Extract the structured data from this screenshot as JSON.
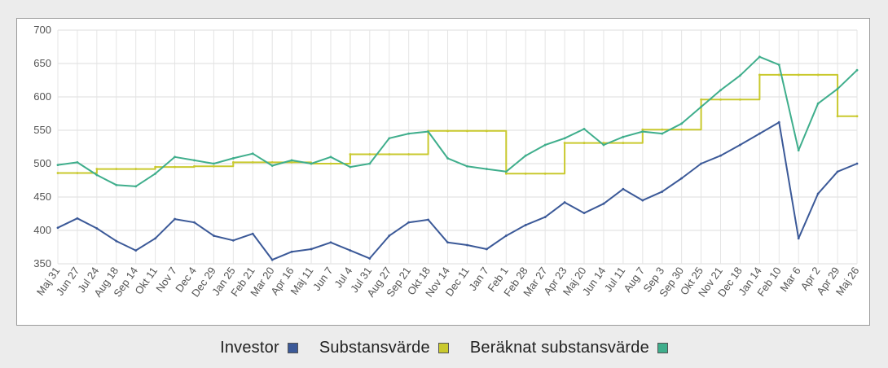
{
  "chart_data": {
    "type": "line",
    "title": "",
    "xlabel": "",
    "ylabel": "",
    "ylim": [
      350,
      700
    ],
    "yticks": [
      350,
      400,
      450,
      500,
      550,
      600,
      650,
      700
    ],
    "grid": true,
    "legend_position": "bottom",
    "x_categories": [
      "Maj 31",
      "Jun 27",
      "Jul 24",
      "Aug 18",
      "Sep 14",
      "Okt 11",
      "Nov 7",
      "Dec 4",
      "Dec 29",
      "Jan 25",
      "Feb 21",
      "Mar 20",
      "Apr 16",
      "Maj 11",
      "Jun 7",
      "Jul 4",
      "Jul 31",
      "Aug 27",
      "Sep 21",
      "Okt 18",
      "Nov 14",
      "Dec 11",
      "Jan 7",
      "Feb 1",
      "Feb 28",
      "Mar 27",
      "Apr 23",
      "Maj 20",
      "Jun 14",
      "Jul 11",
      "Aug 7",
      "Sep 3",
      "Sep 30",
      "Okt 25",
      "Nov 21",
      "Dec 18",
      "Jan 14",
      "Feb 10",
      "Mar 6",
      "Apr 2",
      "Apr 29",
      "Maj 26"
    ],
    "series": [
      {
        "name": "Investor",
        "color": "#3b5998",
        "values": [
          404,
          418,
          403,
          384,
          370,
          388,
          417,
          412,
          392,
          385,
          395,
          356,
          368,
          372,
          382,
          370,
          358,
          392,
          412,
          416,
          382,
          378,
          372,
          392,
          408,
          420,
          442,
          426,
          440,
          462,
          445,
          458,
          478,
          500,
          512,
          528,
          545,
          562,
          388,
          455,
          488,
          500
        ]
      },
      {
        "name": "Substansvärde",
        "color": "#c9c92e",
        "step": true,
        "values": [
          486,
          486,
          492,
          492,
          492,
          495,
          495,
          496,
          496,
          502,
          502,
          502,
          502,
          500,
          500,
          514,
          514,
          514,
          514,
          549,
          549,
          549,
          549,
          485,
          485,
          485,
          531,
          531,
          531,
          531,
          551,
          551,
          551,
          596,
          596,
          596,
          633,
          633,
          633,
          633,
          571,
          571
        ]
      },
      {
        "name": "Beräknat substansvärde",
        "color": "#3fae8c",
        "values": [
          498,
          502,
          483,
          468,
          466,
          485,
          510,
          505,
          500,
          508,
          515,
          497,
          505,
          500,
          510,
          495,
          500,
          538,
          545,
          548,
          508,
          496,
          492,
          488,
          512,
          528,
          538,
          552,
          528,
          540,
          548,
          545,
          560,
          585,
          610,
          632,
          660,
          648,
          520,
          590,
          612,
          640
        ]
      }
    ]
  }
}
